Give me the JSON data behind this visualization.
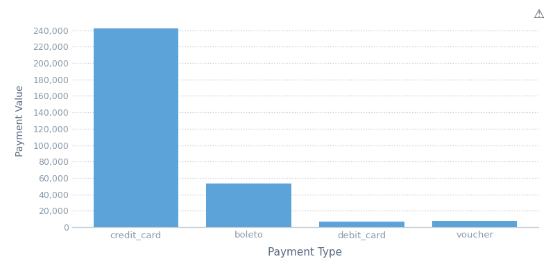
{
  "categories": [
    "credit_card",
    "boleto",
    "debit_card",
    "voucher"
  ],
  "values": [
    242000,
    53000,
    7000,
    7500
  ],
  "bar_color": "#5ba3d9",
  "xlabel": "Payment Type",
  "ylabel": "Payment Value",
  "ylim": [
    0,
    260000
  ],
  "yticks": [
    0,
    20000,
    40000,
    60000,
    80000,
    100000,
    120000,
    140000,
    160000,
    180000,
    200000,
    220000,
    240000
  ],
  "background_color": "#ffffff",
  "grid_color": "#c8d0d8",
  "tick_label_color": "#8899aa",
  "axis_label_color": "#5a6880",
  "xlabel_fontsize": 11,
  "ylabel_fontsize": 10,
  "bar_width": 0.75
}
